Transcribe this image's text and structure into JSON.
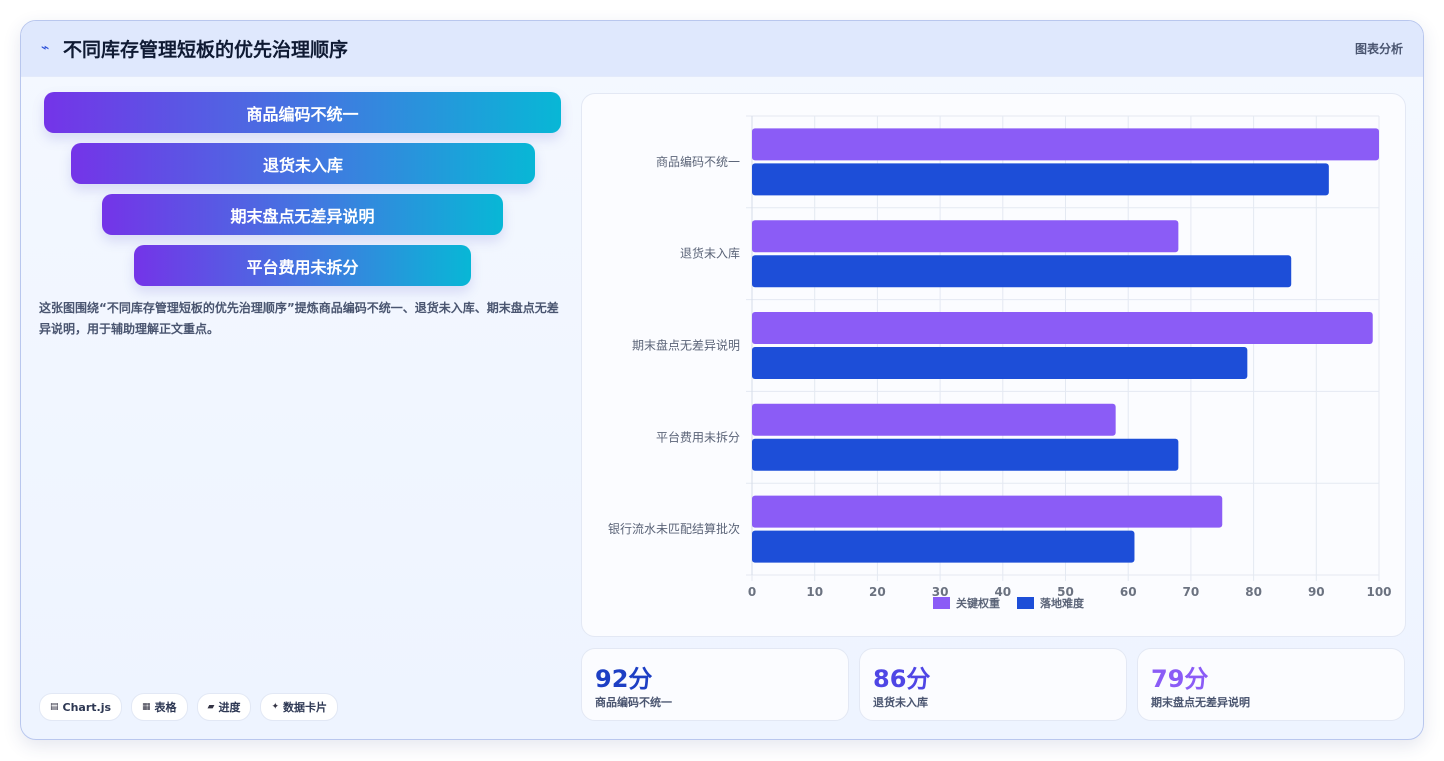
{
  "header": {
    "icon": "chart-trend-icon",
    "icon_glyph": "⌁",
    "title": "不同库存管理短板的优先治理顺序",
    "tag": "图表分析"
  },
  "funnel": [
    {
      "label": "商品编码不统一"
    },
    {
      "label": "退货未入库"
    },
    {
      "label": "期末盘点无差异说明"
    },
    {
      "label": "平台费用未拆分"
    }
  ],
  "description": "这张图围绕“不同库存管理短板的优先治理顺序”提炼商品编码不统一、退货未入库、期末盘点无差异说明，用于辅助理解正文重点。",
  "chips": [
    {
      "icon": "chart-icon",
      "glyph": "▤",
      "label": "Chart.js"
    },
    {
      "icon": "table-icon",
      "glyph": "▦",
      "label": "表格"
    },
    {
      "icon": "progress-icon",
      "glyph": "▰",
      "label": "进度"
    },
    {
      "icon": "sparkle-icon",
      "glyph": "✦",
      "label": "数据卡片"
    }
  ],
  "chart_data": {
    "type": "bar",
    "orientation": "horizontal",
    "categories": [
      "商品编码不统一",
      "退货未入库",
      "期末盘点无差异说明",
      "平台费用未拆分",
      "银行流水未匹配结算批次"
    ],
    "series": [
      {
        "name": "关键权重",
        "color": "#8b5cf6",
        "values": [
          100,
          68,
          99,
          58,
          75
        ]
      },
      {
        "name": "落地难度",
        "color": "#1d4ed8",
        "values": [
          92,
          86,
          79,
          68,
          61
        ]
      }
    ],
    "xlim": [
      0,
      100
    ],
    "xticks": [
      "0",
      "10",
      "20",
      "30",
      "40",
      "50",
      "60",
      "70",
      "80",
      "90",
      "100"
    ],
    "grid": true,
    "legend_position": "bottom"
  },
  "stats": [
    {
      "value": "92分",
      "label": "商品编码不统一",
      "color": "#1d3fc4"
    },
    {
      "value": "86分",
      "label": "退货未入库",
      "color": "#4f46e5"
    },
    {
      "value": "79分",
      "label": "期末盘点无差异说明",
      "color": "#8b5cf6"
    }
  ]
}
